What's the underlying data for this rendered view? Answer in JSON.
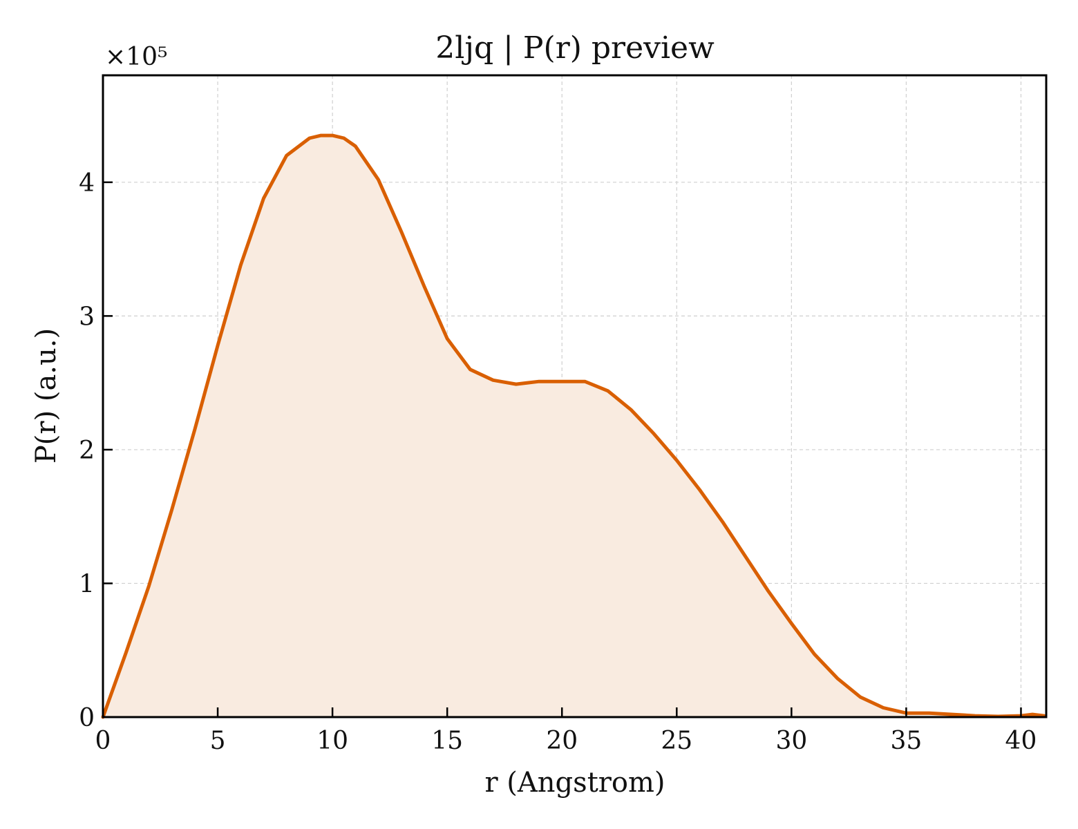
{
  "chart_data": {
    "type": "area",
    "title": "2ljq | P(r) preview",
    "xlabel": "r (Angstrom)",
    "ylabel": "P(r) (a.u.)",
    "y_multiplier_label": "×10⁵",
    "xlim": [
      0,
      41.1
    ],
    "ylim": [
      0,
      4.8
    ],
    "x_ticks": [
      0,
      5,
      10,
      15,
      20,
      25,
      30,
      35,
      40
    ],
    "y_ticks": [
      0,
      1,
      2,
      3,
      4
    ],
    "grid": true,
    "legend": "none",
    "line_color": "#d95f02",
    "fill_color": "#f9ebe0",
    "series": [
      {
        "x": [
          0,
          1,
          2,
          3,
          4,
          5,
          6,
          7,
          8,
          9,
          9.5,
          10,
          10.5,
          11,
          12,
          13,
          14,
          15,
          16,
          17,
          18,
          19,
          20,
          21,
          22,
          23,
          24,
          25,
          26,
          27,
          28,
          29,
          30,
          31,
          32,
          33,
          34,
          35,
          36,
          37,
          38,
          39,
          40,
          40.5,
          41
        ],
        "y": [
          0,
          0.48,
          0.98,
          1.55,
          2.15,
          2.78,
          3.38,
          3.88,
          4.2,
          4.33,
          4.35,
          4.35,
          4.33,
          4.27,
          4.02,
          3.63,
          3.22,
          2.83,
          2.6,
          2.52,
          2.49,
          2.51,
          2.51,
          2.51,
          2.44,
          2.3,
          2.12,
          1.92,
          1.7,
          1.46,
          1.2,
          0.94,
          0.7,
          0.47,
          0.29,
          0.15,
          0.07,
          0.03,
          0.03,
          0.02,
          0.01,
          0.005,
          0.01,
          0.02,
          0.01
        ]
      }
    ]
  }
}
